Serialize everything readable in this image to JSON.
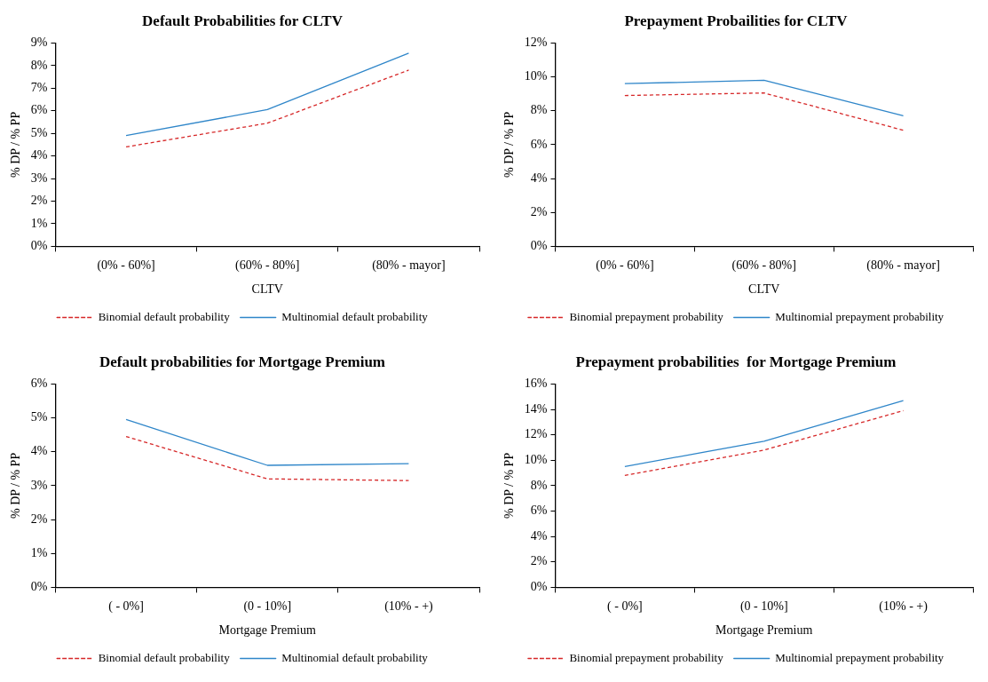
{
  "chart_data": [
    {
      "type": "line",
      "title": "Default Probabilities for CLTV",
      "xlabel": "CLTV",
      "ylabel": "% DP / % PP",
      "categories": [
        "(0% - 60%]",
        "(60% - 80%]",
        "(80% - mayor]"
      ],
      "series": [
        {
          "name": "Binomial default probability",
          "color": "#d62728",
          "line_style": "dashed",
          "values": [
            4.4,
            5.45,
            7.8
          ]
        },
        {
          "name": "Multinomial default probability",
          "color": "#2f86c9",
          "line_style": "solid",
          "values": [
            4.9,
            6.05,
            8.55
          ]
        }
      ],
      "ylim": [
        0,
        9
      ],
      "yticks": [
        {
          "value": 0,
          "label": "0%"
        },
        {
          "value": 1,
          "label": "1%"
        },
        {
          "value": 2,
          "label": "2%"
        },
        {
          "value": 3,
          "label": "3%"
        },
        {
          "value": 4,
          "label": "4%"
        },
        {
          "value": 5,
          "label": "5%"
        },
        {
          "value": 6,
          "label": "6%"
        },
        {
          "value": 7,
          "label": "7%"
        },
        {
          "value": 8,
          "label": "8%"
        },
        {
          "value": 9,
          "label": "9%"
        }
      ],
      "grid": false,
      "legend": "bottom",
      "marker": "none"
    },
    {
      "type": "line",
      "title": "Prepayment Probailities for CLTV",
      "xlabel": "CLTV",
      "ylabel": "% DP / % PP",
      "categories": [
        "(0% - 60%]",
        "(60% - 80%]",
        "(80% - mayor]"
      ],
      "series": [
        {
          "name": "Binomial prepayment probability",
          "color": "#d62728",
          "line_style": "dashed",
          "values": [
            8.9,
            9.05,
            6.85
          ]
        },
        {
          "name": "Multinomial prepayment probability",
          "color": "#2f86c9",
          "line_style": "solid",
          "values": [
            9.6,
            9.8,
            7.7
          ]
        }
      ],
      "ylim": [
        0,
        12
      ],
      "yticks": [
        {
          "value": 0,
          "label": "0%"
        },
        {
          "value": 2,
          "label": "2%"
        },
        {
          "value": 4,
          "label": "4%"
        },
        {
          "value": 6,
          "label": "6%"
        },
        {
          "value": 8,
          "label": "8%"
        },
        {
          "value": 10,
          "label": "10%"
        },
        {
          "value": 12,
          "label": "12%"
        }
      ],
      "grid": false,
      "legend": "bottom",
      "marker": "none"
    },
    {
      "type": "line",
      "title": "Default probabilities for Mortgage Premium",
      "xlabel": "Mortgage Premium",
      "ylabel": "% DP / % PP",
      "categories": [
        "( - 0%]",
        "(0 - 10%]",
        "(10% - +)"
      ],
      "series": [
        {
          "name": "Binomial default probability",
          "color": "#d62728",
          "line_style": "dashed",
          "values": [
            4.45,
            3.2,
            3.15
          ]
        },
        {
          "name": "Multinomial default probability",
          "color": "#2f86c9",
          "line_style": "solid",
          "values": [
            4.95,
            3.6,
            3.65
          ]
        }
      ],
      "ylim": [
        0,
        6
      ],
      "yticks": [
        {
          "value": 0,
          "label": "0%"
        },
        {
          "value": 1,
          "label": "1%"
        },
        {
          "value": 2,
          "label": "2%"
        },
        {
          "value": 3,
          "label": "3%"
        },
        {
          "value": 4,
          "label": "4%"
        },
        {
          "value": 5,
          "label": "5%"
        },
        {
          "value": 6,
          "label": "6%"
        }
      ],
      "grid": false,
      "legend": "bottom",
      "marker": "none"
    },
    {
      "type": "line",
      "title": "Prepayment probabilities  for Mortgage Premium",
      "xlabel": "Mortgage Premium",
      "ylabel": "% DP / % PP",
      "categories": [
        "( - 0%]",
        "(0 - 10%]",
        "(10% - +)"
      ],
      "series": [
        {
          "name": "Binomial prepayment probability",
          "color": "#d62728",
          "line_style": "dashed",
          "values": [
            8.8,
            10.8,
            13.9
          ]
        },
        {
          "name": "Multinomial prepayment probability",
          "color": "#2f86c9",
          "line_style": "solid",
          "values": [
            9.5,
            11.5,
            14.7
          ]
        }
      ],
      "ylim": [
        0,
        16
      ],
      "yticks": [
        {
          "value": 0,
          "label": "0%"
        },
        {
          "value": 2,
          "label": "2%"
        },
        {
          "value": 4,
          "label": "4%"
        },
        {
          "value": 6,
          "label": "6%"
        },
        {
          "value": 8,
          "label": "8%"
        },
        {
          "value": 10,
          "label": "10%"
        },
        {
          "value": 12,
          "label": "12%"
        },
        {
          "value": 14,
          "label": "14%"
        },
        {
          "value": 16,
          "label": "16%"
        }
      ],
      "grid": false,
      "legend": "bottom",
      "marker": "none"
    }
  ]
}
